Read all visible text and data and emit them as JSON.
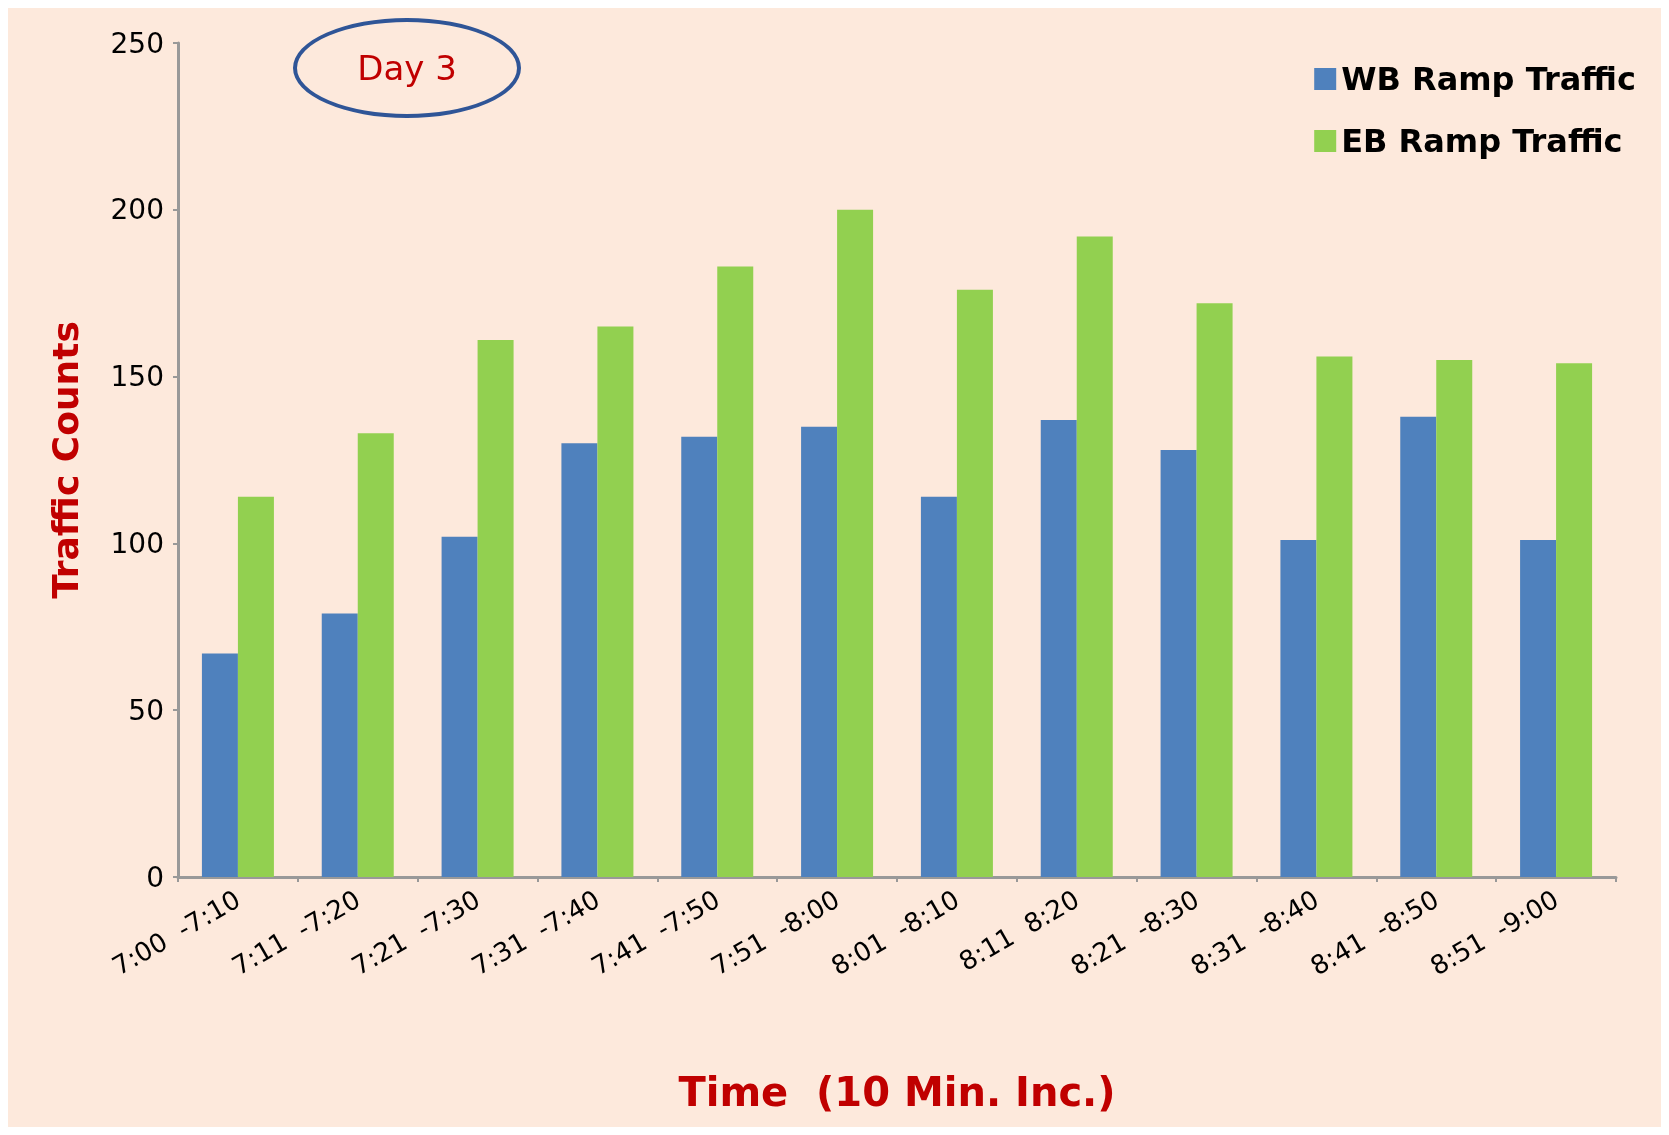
{
  "chart_data": {
    "type": "bar",
    "xlabel": "Time  (10 Min. Inc.)",
    "ylabel": "Traffic Counts",
    "annotations": [
      "Day 3"
    ],
    "categories": [
      "7:00  -7:10",
      "7:11  -7:20",
      "7:21  -7:30",
      "7:31  -7:40",
      "7:41  -7:50",
      "7:51  -8:00",
      "8:01  -8:10",
      "8:11  8:20",
      "8:21  -8:30",
      "8:31  -8:40",
      "8:41  -8:50",
      "8:51  -9:00"
    ],
    "series": [
      {
        "name": "WB Ramp Traffic",
        "color": "#4f81bd",
        "values": [
          67,
          79,
          102,
          130,
          132,
          135,
          114,
          137,
          128,
          101,
          138,
          101
        ]
      },
      {
        "name": "EB Ramp Traffic",
        "color": "#92d050",
        "values": [
          114,
          133,
          161,
          165,
          183,
          200,
          176,
          192,
          172,
          156,
          155,
          154
        ]
      }
    ],
    "ylim": [
      0,
      250
    ],
    "yticks": [
      0,
      50,
      100,
      150,
      200,
      250
    ],
    "legend": "top right"
  }
}
